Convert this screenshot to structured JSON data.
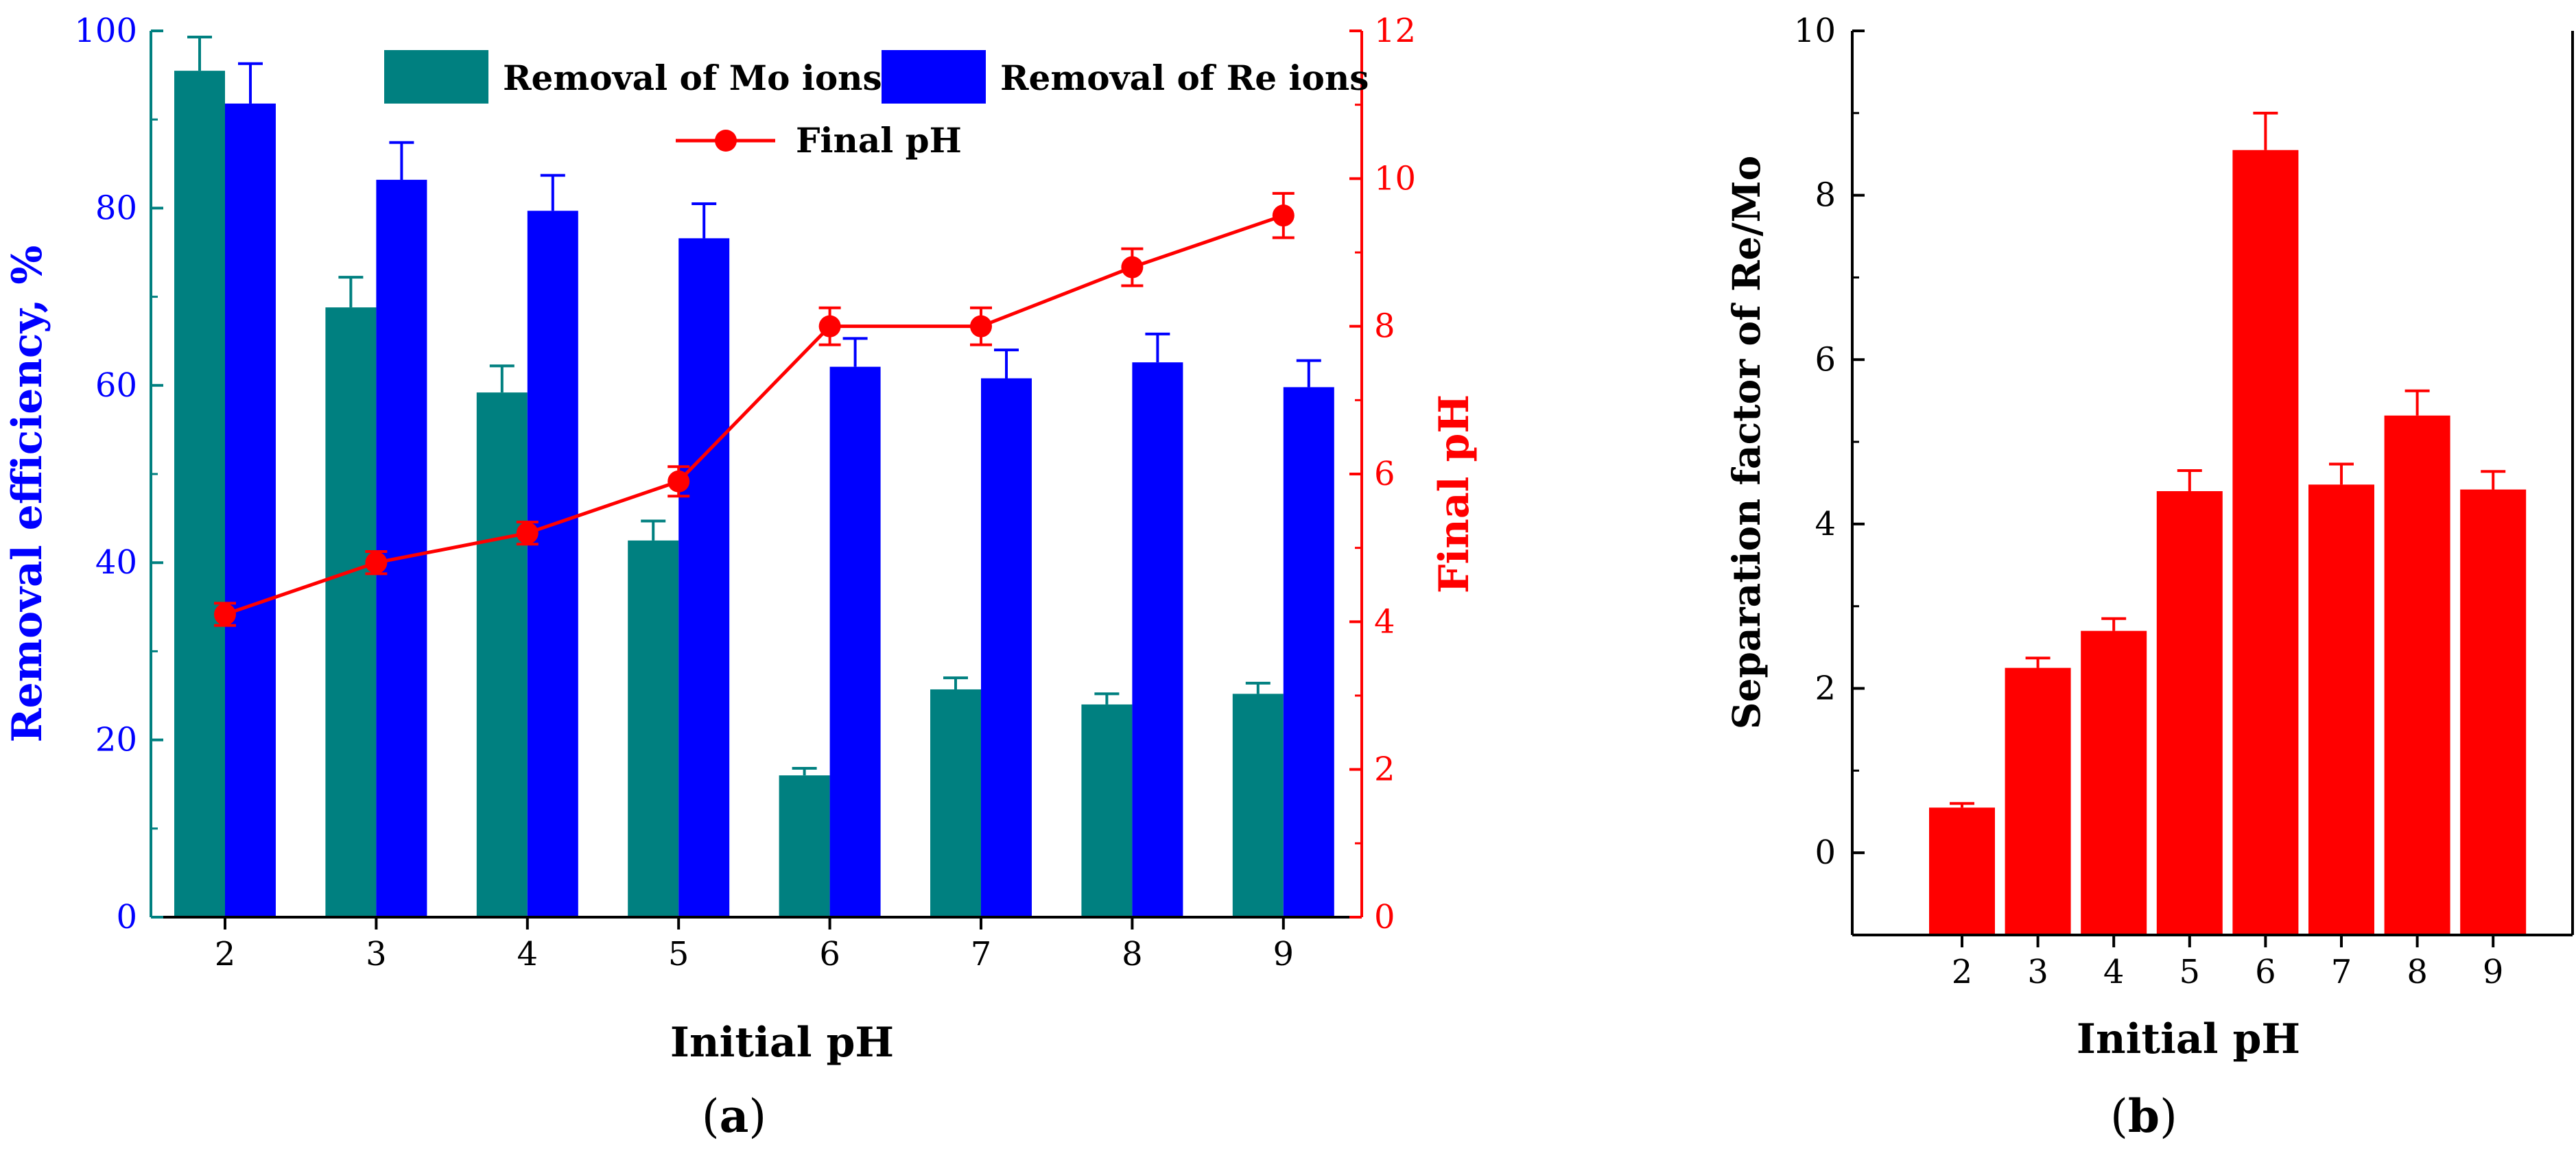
{
  "colors": {
    "mo": "#008080",
    "re": "#0000FF",
    "ph": "#FF0000",
    "sep": "#FF0000",
    "axis": "#000000"
  },
  "chart_data": [
    {
      "type": "bar",
      "panel_label": "(a)",
      "panel_letter": "a",
      "xlabel": "Initial pH",
      "ylabel": "Removal efficiency, %",
      "y2label": "Final pH",
      "categories": [
        "2",
        "3",
        "4",
        "5",
        "6",
        "7",
        "8",
        "9"
      ],
      "ylim": [
        0,
        100
      ],
      "y_ticks": [
        "0",
        "20",
        "40",
        "60",
        "80",
        "100"
      ],
      "y2lim": [
        0,
        12
      ],
      "y2_ticks": [
        "0",
        "2",
        "4",
        "6",
        "8",
        "10",
        "12"
      ],
      "series": [
        {
          "name": "Removal of Mo ions",
          "kind": "bar",
          "axis": "left",
          "values": [
            95.5,
            68.8,
            59.2,
            42.5,
            16.0,
            25.7,
            24.0,
            25.2
          ],
          "errors": [
            3.8,
            3.4,
            3.0,
            2.2,
            0.8,
            1.3,
            1.2,
            1.2
          ]
        },
        {
          "name": "Removal of Re ions",
          "kind": "bar",
          "axis": "left",
          "values": [
            91.8,
            83.2,
            79.7,
            76.6,
            62.1,
            60.8,
            62.6,
            59.8
          ],
          "errors": [
            4.5,
            4.2,
            4.0,
            3.9,
            3.2,
            3.2,
            3.2,
            3.0
          ]
        },
        {
          "name": "Final pH",
          "kind": "line",
          "axis": "right",
          "values": [
            4.1,
            4.8,
            5.2,
            5.9,
            8.0,
            8.0,
            8.8,
            9.5
          ],
          "errors": [
            0.15,
            0.15,
            0.15,
            0.2,
            0.25,
            0.25,
            0.25,
            0.3
          ]
        }
      ]
    },
    {
      "type": "bar",
      "panel_label": "(b)",
      "panel_letter": "b",
      "xlabel": "Initial pH",
      "ylabel": "Separation factor of Re/Mo",
      "categories": [
        "2",
        "3",
        "4",
        "5",
        "6",
        "7",
        "8",
        "9"
      ],
      "ylim": [
        -1,
        10
      ],
      "y_ticks": [
        "0",
        "2",
        "4",
        "6",
        "8",
        "10"
      ],
      "series": [
        {
          "name": "Separation factor of Re/Mo",
          "kind": "bar",
          "values": [
            0.55,
            2.25,
            2.7,
            4.4,
            8.55,
            4.48,
            5.32,
            4.42
          ],
          "errors": [
            0.05,
            0.12,
            0.15,
            0.25,
            0.45,
            0.25,
            0.3,
            0.22
          ]
        }
      ]
    }
  ]
}
